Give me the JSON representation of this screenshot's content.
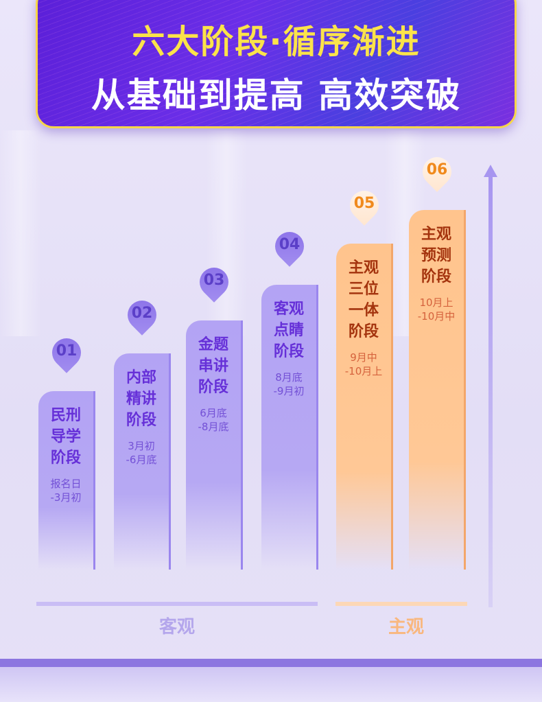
{
  "header": {
    "title_line1": "六大阶段·循序渐进",
    "title_line2": "从基础到提高  高效突破"
  },
  "stages": [
    {
      "num": "01",
      "name": "民刑导学阶段",
      "date1": "报名日",
      "date2": "-3月初",
      "type": "objective"
    },
    {
      "num": "02",
      "name": "内部精讲阶段",
      "date1": "3月初",
      "date2": "-6月底",
      "type": "objective"
    },
    {
      "num": "03",
      "name": "金题串讲阶段",
      "date1": "6月底",
      "date2": "-8月底",
      "type": "objective"
    },
    {
      "num": "04",
      "name": "客观点睛阶段",
      "date1": "8月底",
      "date2": "-9月初",
      "type": "objective"
    },
    {
      "num": "05",
      "name": "主观三位一体阶段",
      "date1": "9月中",
      "date2": "-10月上",
      "type": "subjective"
    },
    {
      "num": "06",
      "name": "主观预测阶段",
      "date1": "10月上",
      "date2": "-10月中",
      "type": "subjective"
    }
  ],
  "groups": {
    "objective": "客观",
    "subjective": "主观"
  },
  "colors": {
    "objective": "#b3a3f4",
    "subjective": "#ffc48d",
    "title_yellow": "#fbe34a"
  }
}
